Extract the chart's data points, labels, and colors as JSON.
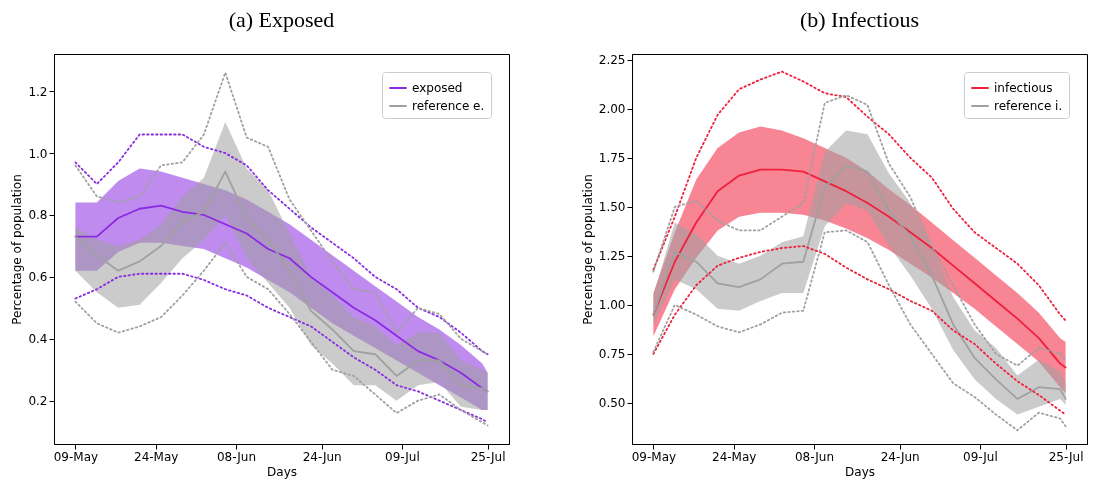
{
  "chart_data": [
    {
      "type": "line",
      "title": "(a) Exposed",
      "xlabel": "Days",
      "ylabel": "Percentage of population",
      "legend": "top right",
      "grid": false,
      "marker": "none",
      "x": [
        "--05-09",
        "--05-13",
        "--05-17",
        "--05-21",
        "--05-25",
        "--05-29",
        "--06-02",
        "--06-06",
        "--06-10",
        "--06-14",
        "--06-18",
        "--06-22",
        "--06-26",
        "--06-30",
        "--07-04",
        "--07-08",
        "--07-12",
        "--07-16",
        "--07-20",
        "--07-24",
        "--07-25"
      ],
      "xlim": [
        "--05-05",
        "--07-29"
      ],
      "xticks": [
        {
          "value": "--05-09",
          "label": "09-May"
        },
        {
          "value": "--05-24",
          "label": "24-May"
        },
        {
          "value": "--06-08",
          "label": "08-Jun"
        },
        {
          "value": "--06-24",
          "label": "24-Jun"
        },
        {
          "value": "--07-09",
          "label": "09-Jul"
        },
        {
          "value": "--07-25",
          "label": "25-Jul"
        }
      ],
      "ylim": [
        0.06,
        1.32
      ],
      "yticks": [
        0.2,
        0.4,
        0.6,
        0.8,
        {
          "value": 1,
          "label": "1.0"
        },
        1.2
      ],
      "series": [
        {
          "name": "exposed",
          "color": "#8a2be2",
          "line_style": "solid",
          "values": [
            0.73,
            0.73,
            0.79,
            0.82,
            0.83,
            0.81,
            0.8,
            0.77,
            0.74,
            0.69,
            0.66,
            0.6,
            0.55,
            0.5,
            0.46,
            0.41,
            0.36,
            0.33,
            0.29,
            0.24,
            0.23
          ],
          "upper": [
            0.84,
            0.84,
            0.91,
            0.95,
            0.94,
            0.92,
            0.9,
            0.88,
            0.85,
            0.81,
            0.77,
            0.72,
            0.67,
            0.62,
            0.57,
            0.52,
            0.47,
            0.43,
            0.38,
            0.32,
            0.29
          ],
          "lower": [
            0.62,
            0.62,
            0.68,
            0.71,
            0.71,
            0.7,
            0.69,
            0.66,
            0.63,
            0.59,
            0.55,
            0.5,
            0.45,
            0.41,
            0.37,
            0.33,
            0.29,
            0.25,
            0.21,
            0.17,
            0.17
          ]
        },
        {
          "name": "reference e.",
          "color": "#a0a0a0",
          "line_style": "solid",
          "values": [
            0.73,
            0.67,
            0.62,
            0.65,
            0.7,
            0.78,
            0.81,
            0.94,
            0.79,
            0.72,
            0.62,
            0.49,
            0.43,
            0.36,
            0.35,
            0.28,
            0.33,
            0.33,
            0.25,
            0.24,
            0.23
          ],
          "upper": [
            0.76,
            0.72,
            0.7,
            0.72,
            0.77,
            0.86,
            0.92,
            1.1,
            0.95,
            0.88,
            0.74,
            0.6,
            0.54,
            0.47,
            0.44,
            0.38,
            0.42,
            0.42,
            0.33,
            0.3,
            0.29
          ],
          "lower": [
            0.62,
            0.55,
            0.5,
            0.51,
            0.58,
            0.66,
            0.72,
            0.8,
            0.66,
            0.58,
            0.5,
            0.38,
            0.32,
            0.25,
            0.25,
            0.2,
            0.25,
            0.26,
            0.18,
            0.17,
            0.17
          ]
        },
        {
          "color": "#8a2be2",
          "line_style": "dotted",
          "values": [
            0.97,
            0.9,
            0.97,
            1.06,
            1.06,
            1.06,
            1.02,
            1.0,
            0.96,
            0.88,
            0.82,
            0.76,
            0.71,
            0.66,
            0.6,
            0.56,
            0.5,
            0.47,
            0.42,
            0.36,
            0.35
          ]
        },
        {
          "color": "#8a2be2",
          "line_style": "dotted",
          "values": [
            0.53,
            0.56,
            0.6,
            0.61,
            0.61,
            0.61,
            0.59,
            0.56,
            0.54,
            0.5,
            0.47,
            0.44,
            0.39,
            0.34,
            0.3,
            0.25,
            0.23,
            0.2,
            0.17,
            0.14,
            0.13
          ]
        },
        {
          "color": "#a0a0a0",
          "line_style": "dotted",
          "values": [
            0.96,
            0.86,
            0.84,
            0.86,
            0.96,
            0.97,
            1.06,
            1.26,
            1.05,
            1.02,
            0.85,
            0.75,
            0.65,
            0.56,
            0.55,
            0.42,
            0.5,
            0.48,
            0.4,
            0.36,
            0.35
          ]
        },
        {
          "color": "#a0a0a0",
          "line_style": "dotted",
          "values": [
            0.52,
            0.45,
            0.42,
            0.44,
            0.47,
            0.54,
            0.62,
            0.71,
            0.6,
            0.56,
            0.48,
            0.39,
            0.3,
            0.28,
            0.22,
            0.16,
            0.2,
            0.22,
            0.17,
            0.13,
            0.12
          ]
        }
      ]
    },
    {
      "type": "line",
      "title": "(b) Infectious",
      "xlabel": "Days",
      "ylabel": "Percentage of population",
      "legend": "top right",
      "grid": false,
      "marker": "none",
      "x": [
        "--05-09",
        "--05-13",
        "--05-17",
        "--05-21",
        "--05-25",
        "--05-29",
        "--06-02",
        "--06-06",
        "--06-10",
        "--06-14",
        "--06-18",
        "--06-22",
        "--06-26",
        "--06-30",
        "--07-04",
        "--07-08",
        "--07-12",
        "--07-16",
        "--07-20",
        "--07-24",
        "--07-25"
      ],
      "xlim": [
        "--05-05",
        "--07-29"
      ],
      "xticks": [
        {
          "value": "--05-09",
          "label": "09-May"
        },
        {
          "value": "--05-24",
          "label": "24-May"
        },
        {
          "value": "--06-08",
          "label": "08-Jun"
        },
        {
          "value": "--06-24",
          "label": "24-Jun"
        },
        {
          "value": "--07-09",
          "label": "09-Jul"
        },
        {
          "value": "--07-25",
          "label": "25-Jul"
        }
      ],
      "ylim": [
        0.29,
        2.28
      ],
      "yticks": [
        {
          "value": 0.5,
          "label": "0.50"
        },
        {
          "value": 0.75,
          "label": "0.75"
        },
        {
          "value": 1,
          "label": "1.00"
        },
        {
          "value": 1.25,
          "label": "1.25"
        },
        {
          "value": 1.5,
          "label": "1.50"
        },
        {
          "value": 1.75,
          "label": "1.75"
        },
        {
          "value": 2,
          "label": "2.00"
        },
        {
          "value": 2.25,
          "label": "2.25"
        }
      ],
      "series": [
        {
          "name": "infectious",
          "color": "#f0203c",
          "line_style": "solid",
          "values": [
            0.95,
            1.22,
            1.42,
            1.58,
            1.66,
            1.69,
            1.69,
            1.68,
            1.63,
            1.58,
            1.52,
            1.45,
            1.37,
            1.29,
            1.2,
            1.11,
            1.02,
            0.93,
            0.83,
            0.7,
            0.68
          ],
          "upper": [
            1.06,
            1.37,
            1.64,
            1.8,
            1.88,
            1.91,
            1.89,
            1.85,
            1.8,
            1.75,
            1.68,
            1.59,
            1.51,
            1.42,
            1.33,
            1.24,
            1.15,
            1.06,
            0.96,
            0.83,
            0.81
          ],
          "lower": [
            0.84,
            1.08,
            1.24,
            1.38,
            1.45,
            1.47,
            1.47,
            1.46,
            1.43,
            1.39,
            1.34,
            1.28,
            1.21,
            1.14,
            1.06,
            0.98,
            0.89,
            0.8,
            0.71,
            0.58,
            0.55
          ]
        },
        {
          "name": "reference i.",
          "color": "#a0a0a0",
          "line_style": "solid",
          "values": [
            0.95,
            1.27,
            1.22,
            1.11,
            1.09,
            1.13,
            1.21,
            1.22,
            1.6,
            1.71,
            1.68,
            1.48,
            1.35,
            1.15,
            0.9,
            0.73,
            0.62,
            0.52,
            0.58,
            0.57,
            0.52
          ],
          "upper": [
            1.05,
            1.42,
            1.36,
            1.25,
            1.21,
            1.25,
            1.32,
            1.35,
            1.78,
            1.89,
            1.87,
            1.67,
            1.52,
            1.3,
            1.04,
            0.87,
            0.78,
            0.64,
            0.72,
            0.66,
            0.6
          ],
          "lower": [
            0.9,
            1.13,
            1.08,
            0.98,
            0.97,
            1.02,
            1.06,
            1.06,
            1.4,
            1.52,
            1.48,
            1.3,
            1.15,
            0.98,
            0.77,
            0.62,
            0.52,
            0.44,
            0.48,
            0.52,
            0.49
          ]
        },
        {
          "color": "#f0203c",
          "line_style": "dotted",
          "values": [
            1.18,
            1.45,
            1.75,
            1.97,
            2.1,
            2.15,
            2.19,
            2.14,
            2.08,
            2.06,
            1.96,
            1.87,
            1.75,
            1.65,
            1.49,
            1.37,
            1.29,
            1.21,
            1.1,
            0.95,
            0.92
          ]
        },
        {
          "color": "#f0203c",
          "line_style": "dotted",
          "values": [
            0.75,
            0.95,
            1.1,
            1.2,
            1.24,
            1.27,
            1.29,
            1.3,
            1.26,
            1.19,
            1.13,
            1.08,
            1.02,
            0.97,
            0.87,
            0.8,
            0.7,
            0.61,
            0.54,
            0.46,
            0.44
          ]
        },
        {
          "color": "#a0a0a0",
          "line_style": "dotted",
          "values": [
            1.17,
            1.5,
            1.53,
            1.43,
            1.38,
            1.38,
            1.45,
            1.52,
            2.03,
            2.07,
            2.02,
            1.72,
            1.55,
            1.3,
            1.1,
            0.9,
            0.75,
            0.69,
            0.78,
            0.75,
            0.72
          ]
        },
        {
          "color": "#a0a0a0",
          "line_style": "dotted",
          "values": [
            0.76,
            1.0,
            0.95,
            0.89,
            0.86,
            0.9,
            0.96,
            0.97,
            1.37,
            1.38,
            1.32,
            1.1,
            0.9,
            0.75,
            0.6,
            0.53,
            0.44,
            0.36,
            0.45,
            0.42,
            0.38
          ]
        }
      ]
    }
  ]
}
